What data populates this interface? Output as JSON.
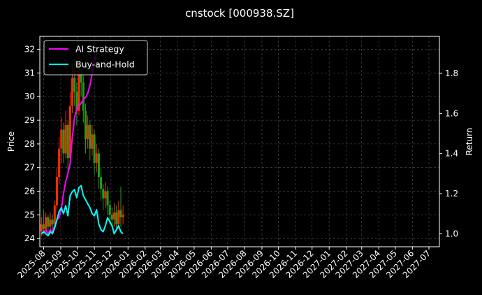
{
  "title": "cnstock [000938.SZ]",
  "chart_data": {
    "type": "line",
    "title": "cnstock [000938.SZ]",
    "ylabel_left": "Price",
    "ylabel_right": "Return",
    "xlim": [
      "2025-07-25",
      "2027-07-20"
    ],
    "ylim_left": [
      23.65,
      32.55
    ],
    "ylim_right": [
      0.935,
      1.985
    ],
    "grid": true,
    "legend_position": "top-left",
    "colors": {
      "background": "#000000",
      "strategy": "#ff00ff",
      "buy_hold": "#00ffff",
      "candle_up": "#ff2a00",
      "candle_down": "#1ea01e",
      "grid": "#555555",
      "frame": "#ffffff"
    },
    "x_ticks": [
      "2025-08",
      "2025-09",
      "2025-10",
      "2025-11",
      "2025-12",
      "2026-01",
      "2026-02",
      "2026-03",
      "2026-04",
      "2026-05",
      "2026-06",
      "2026-07",
      "2026-08",
      "2026-09",
      "2026-10",
      "2026-11",
      "2026-12",
      "2027-01",
      "2027-02",
      "2027-03",
      "2027-04",
      "2027-05",
      "2027-06",
      "2027-07"
    ],
    "y_ticks_left": [
      24,
      25,
      26,
      27,
      28,
      29,
      30,
      31,
      32
    ],
    "y_ticks_right": [
      1.0,
      1.2,
      1.4,
      1.6,
      1.8
    ],
    "series": [
      {
        "name": "AI Strategy",
        "axis": "right",
        "x": [
          "2025-07-28",
          "2025-08-01",
          "2025-08-05",
          "2025-08-09",
          "2025-08-13",
          "2025-08-17",
          "2025-08-21",
          "2025-08-25",
          "2025-08-29",
          "2025-09-02",
          "2025-09-06",
          "2025-09-10",
          "2025-09-14",
          "2025-09-18",
          "2025-09-22",
          "2025-09-26",
          "2025-09-30",
          "2025-10-04",
          "2025-10-08",
          "2025-10-12",
          "2025-10-16",
          "2025-10-20",
          "2025-10-24",
          "2025-10-28",
          "2025-11-01",
          "2025-11-05"
        ],
        "values": [
          1.0,
          1.01,
          1.02,
          1.0,
          1.02,
          1.01,
          1.04,
          1.07,
          1.08,
          1.12,
          1.2,
          1.26,
          1.3,
          1.35,
          1.48,
          1.58,
          1.62,
          1.64,
          1.65,
          1.67,
          1.68,
          1.7,
          1.74,
          1.8,
          1.86,
          1.9
        ]
      },
      {
        "name": "Buy-and-Hold",
        "axis": "right",
        "x": [
          "2025-07-28",
          "2025-08-01",
          "2025-08-05",
          "2025-08-09",
          "2025-08-13",
          "2025-08-17",
          "2025-08-21",
          "2025-08-25",
          "2025-08-29",
          "2025-09-02",
          "2025-09-06",
          "2025-09-10",
          "2025-09-14",
          "2025-09-18",
          "2025-09-22",
          "2025-09-26",
          "2025-09-30",
          "2025-10-04",
          "2025-10-08",
          "2025-10-12",
          "2025-10-16",
          "2025-10-20",
          "2025-10-24",
          "2025-10-28",
          "2025-11-01",
          "2025-11-05",
          "2025-11-09",
          "2025-11-13",
          "2025-11-17",
          "2025-11-21",
          "2025-11-25",
          "2025-11-29",
          "2025-12-03",
          "2025-12-07",
          "2025-12-11",
          "2025-12-15",
          "2025-12-19",
          "2025-12-23"
        ],
        "values": [
          1.0,
          1.01,
          1.0,
          0.99,
          1.01,
          1.0,
          1.03,
          1.07,
          1.11,
          1.13,
          1.1,
          1.14,
          1.09,
          1.19,
          1.21,
          1.22,
          1.18,
          1.23,
          1.24,
          1.19,
          1.17,
          1.15,
          1.13,
          1.1,
          1.09,
          1.12,
          1.05,
          1.02,
          1.01,
          1.04,
          1.08,
          1.06,
          1.04,
          1.0,
          1.02,
          1.04,
          1.01,
          1.0
        ]
      }
    ],
    "price_candles": {
      "axis": "left",
      "bars": [
        {
          "x": "2025-07-28",
          "open": 24.3,
          "close": 24.6,
          "low": 24.1,
          "high": 24.9
        },
        {
          "x": "2025-08-01",
          "open": 24.6,
          "close": 24.4,
          "low": 24.2,
          "high": 25.2
        },
        {
          "x": "2025-08-05",
          "open": 24.4,
          "close": 24.9,
          "low": 24.2,
          "high": 25.1
        },
        {
          "x": "2025-08-09",
          "open": 24.9,
          "close": 24.5,
          "low": 24.3,
          "high": 25.0
        },
        {
          "x": "2025-08-13",
          "open": 24.5,
          "close": 24.8,
          "low": 24.3,
          "high": 25.1
        },
        {
          "x": "2025-08-17",
          "open": 24.8,
          "close": 24.6,
          "low": 24.4,
          "high": 25.0
        },
        {
          "x": "2025-08-21",
          "open": 24.6,
          "close": 25.4,
          "low": 24.5,
          "high": 25.6
        },
        {
          "x": "2025-08-25",
          "open": 25.4,
          "close": 26.6,
          "low": 25.2,
          "high": 27.0
        },
        {
          "x": "2025-08-29",
          "open": 26.6,
          "close": 27.8,
          "low": 26.3,
          "high": 28.3
        },
        {
          "x": "2025-09-02",
          "open": 27.8,
          "close": 28.6,
          "low": 27.2,
          "high": 29.1
        },
        {
          "x": "2025-09-06",
          "open": 28.6,
          "close": 27.6,
          "low": 27.2,
          "high": 28.9
        },
        {
          "x": "2025-09-10",
          "open": 27.6,
          "close": 28.8,
          "low": 27.4,
          "high": 29.4
        },
        {
          "x": "2025-09-14",
          "open": 28.8,
          "close": 27.4,
          "low": 26.8,
          "high": 29.0
        },
        {
          "x": "2025-09-18",
          "open": 27.4,
          "close": 29.6,
          "low": 27.2,
          "high": 30.2
        },
        {
          "x": "2025-09-22",
          "open": 29.6,
          "close": 30.8,
          "low": 29.3,
          "high": 31.4
        },
        {
          "x": "2025-09-26",
          "open": 30.8,
          "close": 30.2,
          "low": 29.6,
          "high": 31.6
        },
        {
          "x": "2025-09-30",
          "open": 30.2,
          "close": 29.4,
          "low": 28.8,
          "high": 30.6
        },
        {
          "x": "2025-10-04",
          "open": 29.4,
          "close": 31.0,
          "low": 29.2,
          "high": 31.8
        },
        {
          "x": "2025-10-08",
          "open": 31.0,
          "close": 30.6,
          "low": 30.0,
          "high": 31.5
        },
        {
          "x": "2025-10-12",
          "open": 30.6,
          "close": 29.4,
          "low": 28.9,
          "high": 30.9
        },
        {
          "x": "2025-10-16",
          "open": 29.4,
          "close": 28.2,
          "low": 27.6,
          "high": 29.7
        },
        {
          "x": "2025-10-20",
          "open": 28.2,
          "close": 28.8,
          "low": 27.8,
          "high": 29.2
        },
        {
          "x": "2025-10-24",
          "open": 28.8,
          "close": 27.8,
          "low": 27.3,
          "high": 29.0
        },
        {
          "x": "2025-10-28",
          "open": 27.8,
          "close": 28.4,
          "low": 27.5,
          "high": 28.8
        },
        {
          "x": "2025-11-01",
          "open": 28.4,
          "close": 27.2,
          "low": 26.7,
          "high": 28.6
        },
        {
          "x": "2025-11-05",
          "open": 27.2,
          "close": 27.6,
          "low": 26.8,
          "high": 28.0
        },
        {
          "x": "2025-11-09",
          "open": 27.6,
          "close": 26.6,
          "low": 26.1,
          "high": 27.8
        },
        {
          "x": "2025-11-13",
          "open": 26.6,
          "close": 26.1,
          "low": 25.6,
          "high": 27.0
        },
        {
          "x": "2025-11-17",
          "open": 26.1,
          "close": 25.7,
          "low": 25.2,
          "high": 26.3
        },
        {
          "x": "2025-11-21",
          "open": 25.7,
          "close": 26.0,
          "low": 25.3,
          "high": 26.4
        },
        {
          "x": "2025-11-25",
          "open": 26.0,
          "close": 25.4,
          "low": 25.0,
          "high": 26.2
        },
        {
          "x": "2025-11-29",
          "open": 25.4,
          "close": 25.0,
          "low": 24.6,
          "high": 25.6
        },
        {
          "x": "2025-12-03",
          "open": 25.0,
          "close": 24.8,
          "low": 24.4,
          "high": 25.3
        },
        {
          "x": "2025-12-07",
          "open": 24.8,
          "close": 25.1,
          "low": 24.5,
          "high": 25.5
        },
        {
          "x": "2025-12-11",
          "open": 25.1,
          "close": 24.6,
          "low": 24.3,
          "high": 25.4
        },
        {
          "x": "2025-12-15",
          "open": 24.6,
          "close": 25.2,
          "low": 24.4,
          "high": 25.6
        },
        {
          "x": "2025-12-19",
          "open": 25.2,
          "close": 24.9,
          "low": 24.5,
          "high": 26.2
        },
        {
          "x": "2025-12-23",
          "open": 24.9,
          "close": 25.0,
          "low": 24.6,
          "high": 25.4
        }
      ]
    }
  }
}
